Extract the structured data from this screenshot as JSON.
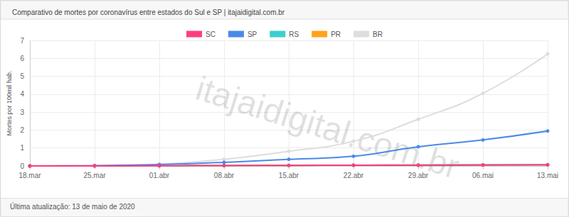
{
  "chart_data": {
    "type": "line",
    "title": "Comparativo de mortes por coronavírus entre estados do Sul e SP | itajaidigital.com.br",
    "y_label": "Mortes por 100mil hab.",
    "annotations": [
      "itajaidigital.com.br",
      "Última atualização: 13 de maio de 2020"
    ],
    "categories": [
      "18.mar",
      "25.mar",
      "01.abr",
      "08.abr",
      "15.abr",
      "22.abr",
      "29.abr",
      "06.mai",
      "13.mai"
    ],
    "series": [
      {
        "name": "SC",
        "color": "#ff3d7f",
        "values": [
          0,
          0,
          0.01,
          0.02,
          0.03,
          0.04,
          0.04,
          0.05,
          0.06
        ]
      },
      {
        "name": "SP",
        "color": "#4a89e8",
        "values": [
          0,
          0.02,
          0.08,
          0.2,
          0.37,
          0.54,
          1.07,
          1.45,
          1.95
        ]
      },
      {
        "name": "RS",
        "color": "#3ccfcf",
        "values": [
          0,
          0,
          0.01,
          0.02,
          0.03,
          0.04,
          0.05,
          0.06,
          0.07
        ]
      },
      {
        "name": "PR",
        "color": "#ffa31a",
        "values": [
          0,
          0,
          0.01,
          0.02,
          0.03,
          0.04,
          0.05,
          0.06,
          0.07
        ]
      },
      {
        "name": "BR",
        "color": "#dddddd",
        "values": [
          0,
          0.02,
          0.1,
          0.37,
          0.82,
          1.38,
          2.6,
          4.05,
          6.25
        ]
      }
    ],
    "ylim": [
      0,
      7
    ],
    "yticks": [
      0,
      1,
      2,
      3,
      4,
      5,
      6,
      7
    ],
    "grid": true,
    "legend": "top",
    "marker": "circle",
    "line_style": "solid"
  }
}
